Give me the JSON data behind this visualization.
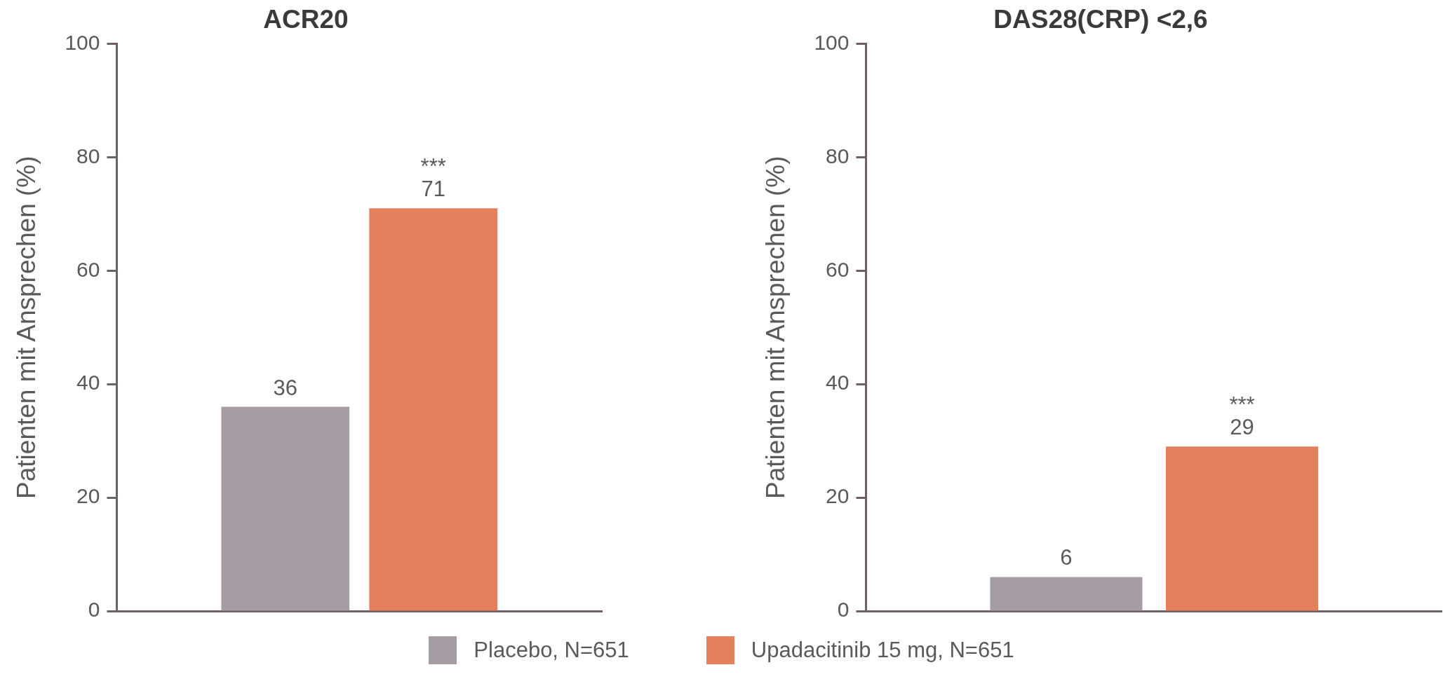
{
  "chart_data": [
    {
      "type": "bar",
      "title": "ACR20",
      "ylabel": "Patienten mit Ansprechen (%)",
      "categories": [
        null
      ],
      "series": [
        {
          "name": "Placebo, N=651",
          "color": "#a69ca3",
          "values": [
            36
          ]
        },
        {
          "name": "Upadacitinib 15 mg, N=651",
          "color": "#e57f5e",
          "values": [
            71
          ]
        }
      ],
      "ylim": [
        0,
        100
      ],
      "yticks": [
        0,
        20,
        40,
        60,
        80,
        100
      ],
      "grid": false,
      "legend": "bottom",
      "tick_labels": "y",
      "data_labels": true,
      "annotations": [
        {
          "text": "***",
          "y": 71
        }
      ]
    },
    {
      "type": "bar",
      "title": "DAS28(CRP) <2,6",
      "ylabel": "Patienten mit Ansprechen (%)",
      "categories": [
        null
      ],
      "series": [
        {
          "color": "#a69ca3",
          "values": [
            6
          ]
        },
        {
          "color": "#e57f5e",
          "values": [
            29
          ]
        }
      ],
      "ylim": [
        0,
        100
      ],
      "yticks": [
        0,
        20,
        40,
        60,
        80,
        100
      ],
      "grid": false,
      "tick_labels": "y",
      "data_labels": true,
      "annotations": [
        {
          "text": "***",
          "y": 29
        }
      ]
    }
  ]
}
